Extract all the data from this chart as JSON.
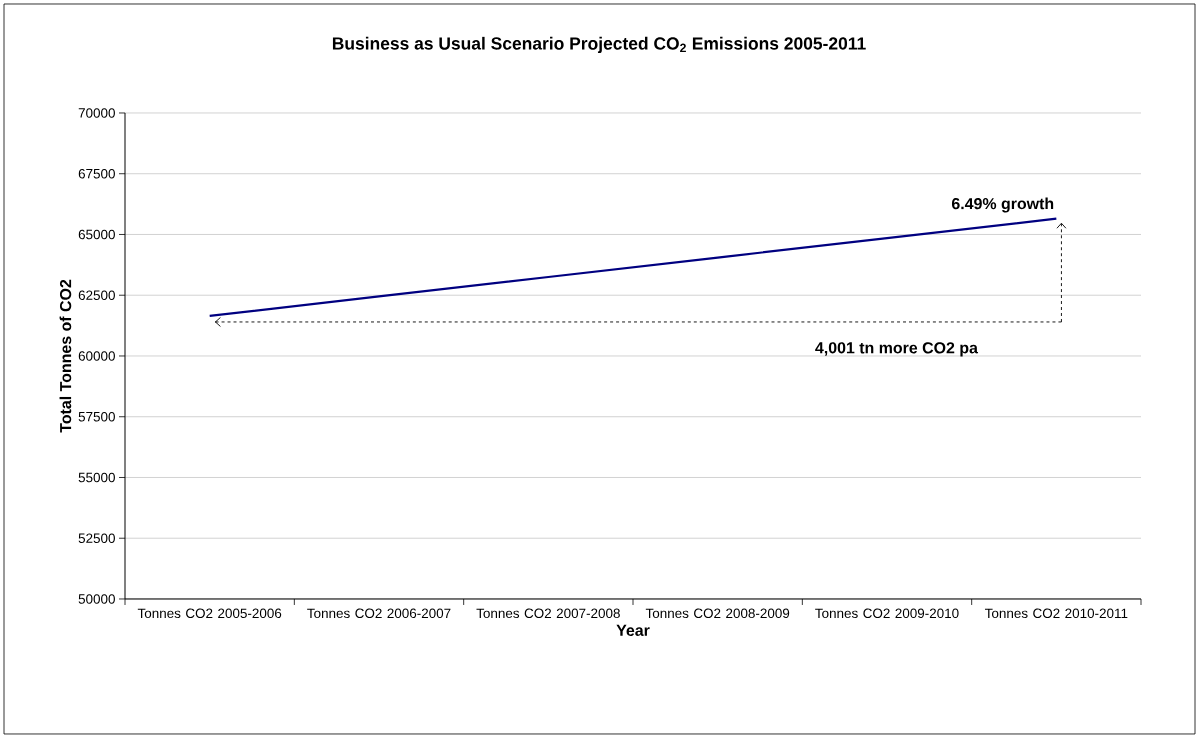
{
  "chart_data": {
    "type": "line",
    "title": "Business as Usual Scenario Projected CO$_{2}$ Emissions 2005-2011",
    "xlabel": "Year",
    "ylabel": "Total Tonnes of CO2",
    "categories": [
      "Tonnes CO2 2005-2006",
      "Tonnes CO2 2006-2007",
      "Tonnes CO2 2007-2008",
      "Tonnes CO2 2008-2009",
      "Tonnes CO2 2009-2010",
      "Tonnes CO2 2010-2011"
    ],
    "series": [
      {
        "color": "#000080",
        "values": [
          61650,
          62450,
          63250,
          64050,
          64850,
          65650
        ]
      }
    ],
    "ylim": [
      50000,
      70000
    ],
    "yticks": [
      50000,
      52500,
      55000,
      57500,
      60000,
      62500,
      65000,
      67500,
      70000
    ],
    "ref_lines": [
      {
        "axis": "y",
        "value": 61400,
        "label": "4,001 tn more CO2 pa",
        "color": "#000000",
        "line_style": "dashed"
      }
    ],
    "grid": "y",
    "marker": "none",
    "line_style": "solid",
    "annotations": [
      {
        "text": "6.49% growth",
        "x": "Tonnes CO2 2010-2011",
        "y": 65650
      }
    ]
  }
}
